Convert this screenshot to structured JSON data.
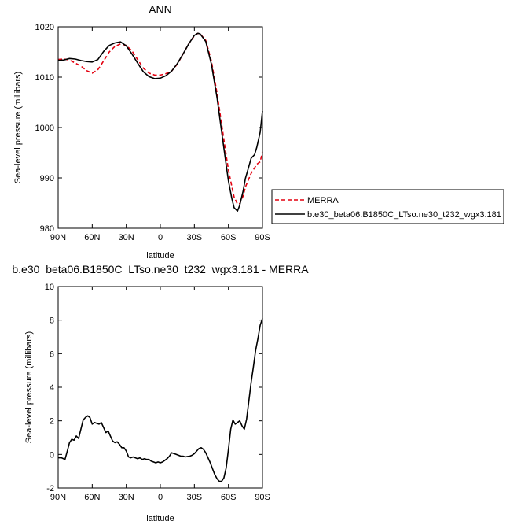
{
  "chart_data": [
    {
      "type": "line",
      "title": "ANN",
      "xlabel": "latitude",
      "ylabel": "Sea-level pressure (millibars)",
      "xlim": [
        90,
        -90
      ],
      "ylim": [
        980,
        1020
      ],
      "xticks": [
        90,
        60,
        30,
        0,
        -30,
        -60,
        -90
      ],
      "xtick_labels": [
        "90N",
        "60N",
        "30N",
        "0",
        "30S",
        "60S",
        "90S"
      ],
      "yticks": [
        980,
        990,
        1000,
        1010,
        1020
      ],
      "ytick_labels": [
        "980",
        "990",
        "1000",
        "1010",
        "1020"
      ],
      "legend_position": "right",
      "series": [
        {
          "name": "MERRA",
          "color": "#e3000f",
          "dash": "dashed",
          "x": [
            90,
            85,
            80,
            75,
            70,
            65,
            60,
            55,
            50,
            45,
            40,
            35,
            30,
            25,
            20,
            15,
            10,
            5,
            0,
            -5,
            -10,
            -15,
            -20,
            -25,
            -30,
            -33,
            -35,
            -40,
            -45,
            -50,
            -55,
            -58,
            -60,
            -63,
            -65,
            -68,
            -70,
            -73,
            -75,
            -80,
            -85,
            -88,
            -90
          ],
          "values": [
            1013.5,
            1013.6,
            1013.4,
            1012.8,
            1012.2,
            1011.3,
            1010.8,
            1011.5,
            1013.2,
            1015.0,
            1016.1,
            1016.6,
            1016.3,
            1015.2,
            1013.5,
            1011.8,
            1010.8,
            1010.4,
            1010.4,
            1010.7,
            1011.2,
            1012.6,
            1014.6,
            1016.6,
            1018.2,
            1018.7,
            1018.6,
            1017.3,
            1013.2,
            1006.8,
            999.2,
            994.5,
            991.6,
            988.3,
            986.2,
            984.8,
            984.9,
            986.4,
            988.2,
            990.9,
            992.7,
            993.2,
            995.2
          ]
        },
        {
          "name": "b.e30_beta06.B1850C_LTso.ne30_t232_wgx3.181",
          "color": "#000000",
          "dash": "solid",
          "x": [
            90,
            85,
            80,
            75,
            70,
            65,
            60,
            55,
            50,
            45,
            40,
            35,
            30,
            25,
            20,
            15,
            10,
            5,
            0,
            -5,
            -10,
            -15,
            -20,
            -25,
            -30,
            -33,
            -35,
            -40,
            -45,
            -50,
            -55,
            -58,
            -60,
            -63,
            -65,
            -68,
            -70,
            -73,
            -75,
            -78,
            -80,
            -83,
            -85,
            -88,
            -90
          ],
          "values": [
            1013.3,
            1013.4,
            1013.7,
            1013.6,
            1013.3,
            1013.1,
            1013.0,
            1013.5,
            1015.1,
            1016.3,
            1016.8,
            1017.0,
            1016.2,
            1014.6,
            1012.8,
            1011.1,
            1010.1,
            1009.7,
            1009.8,
            1010.3,
            1011.2,
            1012.7,
            1014.6,
            1016.6,
            1018.3,
            1018.7,
            1018.6,
            1017.1,
            1012.6,
            1005.9,
            997.6,
            992.6,
            989.4,
            985.9,
            984.1,
            983.4,
            984.6,
            987.4,
            989.9,
            992.3,
            993.9,
            994.6,
            996.1,
            999.1,
            1003.3
          ]
        }
      ]
    },
    {
      "type": "line",
      "title": "b.e30_beta06.B1850C_LTso.ne30_t232_wgx3.181 - MERRA",
      "xlabel": "latitude",
      "ylabel": "Sea-level pressure (millibars)",
      "xlim": [
        90,
        -90
      ],
      "ylim": [
        -2,
        10
      ],
      "xticks": [
        90,
        60,
        30,
        0,
        -30,
        -60,
        -90
      ],
      "xtick_labels": [
        "90N",
        "60N",
        "30N",
        "0",
        "30S",
        "60S",
        "90S"
      ],
      "yticks": [
        -2,
        0,
        2,
        4,
        6,
        8,
        10
      ],
      "ytick_labels": [
        "-2",
        "0",
        "2",
        "4",
        "6",
        "8",
        "10"
      ],
      "series": [
        {
          "color": "#000000",
          "dash": "solid",
          "x": [
            90,
            87,
            84,
            82,
            80,
            78,
            76,
            74,
            72,
            70,
            68,
            66,
            64,
            62,
            60,
            58,
            56,
            54,
            52,
            50,
            48,
            46,
            44,
            42,
            40,
            38,
            36,
            34,
            32,
            30,
            28,
            26,
            24,
            22,
            20,
            18,
            16,
            14,
            12,
            10,
            8,
            6,
            4,
            2,
            0,
            -2,
            -4,
            -6,
            -8,
            -10,
            -12,
            -14,
            -16,
            -18,
            -20,
            -22,
            -24,
            -26,
            -28,
            -30,
            -32,
            -34,
            -36,
            -38,
            -40,
            -42,
            -44,
            -46,
            -48,
            -50,
            -52,
            -54,
            -56,
            -58,
            -60,
            -62,
            -64,
            -66,
            -68,
            -70,
            -72,
            -74,
            -76,
            -78,
            -80,
            -82,
            -84,
            -86,
            -88,
            -90
          ],
          "values": [
            -0.2,
            -0.2,
            -0.3,
            0.2,
            0.7,
            0.9,
            0.85,
            1.1,
            0.95,
            1.5,
            2.05,
            2.2,
            2.3,
            2.2,
            1.8,
            1.9,
            1.85,
            1.8,
            1.9,
            1.6,
            1.3,
            1.4,
            1.1,
            0.8,
            0.7,
            0.75,
            0.6,
            0.4,
            0.4,
            0.2,
            -0.15,
            -0.2,
            -0.15,
            -0.2,
            -0.25,
            -0.2,
            -0.3,
            -0.25,
            -0.3,
            -0.3,
            -0.4,
            -0.45,
            -0.5,
            -0.45,
            -0.5,
            -0.45,
            -0.35,
            -0.25,
            -0.1,
            0.1,
            0.05,
            0.0,
            -0.05,
            -0.1,
            -0.1,
            -0.15,
            -0.12,
            -0.1,
            -0.05,
            0.05,
            0.2,
            0.35,
            0.4,
            0.3,
            0.1,
            -0.2,
            -0.5,
            -0.85,
            -1.2,
            -1.45,
            -1.6,
            -1.6,
            -1.4,
            -0.8,
            0.3,
            1.5,
            2.05,
            1.8,
            1.9,
            2.0,
            1.7,
            1.5,
            2.1,
            3.2,
            4.3,
            5.2,
            6.2,
            6.9,
            7.7,
            8.1
          ]
        }
      ]
    }
  ]
}
